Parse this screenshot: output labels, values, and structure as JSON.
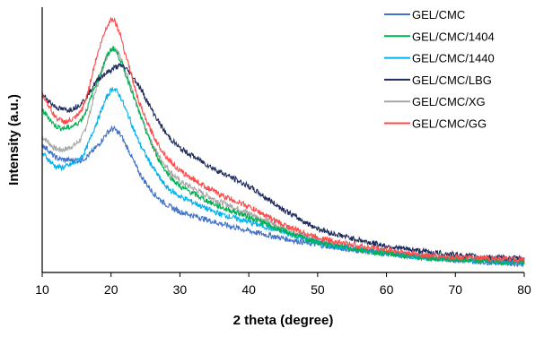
{
  "chart_data": {
    "type": "line",
    "title": "",
    "xlabel": "2 theta (degree)",
    "ylabel": "Intensity (a.u.)",
    "xlim": [
      10,
      80
    ],
    "x_ticks": [
      "10",
      "20",
      "30",
      "40",
      "50",
      "60",
      "70",
      "80"
    ],
    "y_ticks_shown": false,
    "grid": false,
    "legend_position": "top-right",
    "x": [
      10,
      12,
      14,
      16,
      18,
      20,
      21,
      22,
      24,
      26,
      28,
      30,
      35,
      40,
      45,
      50,
      55,
      60,
      65,
      70,
      75,
      80
    ],
    "series": [
      {
        "name": "GEL/CMC",
        "color": "#4472C4",
        "values": [
          0.505,
          0.455,
          0.445,
          0.45,
          0.5,
          0.565,
          0.555,
          0.51,
          0.4,
          0.32,
          0.27,
          0.24,
          0.2,
          0.165,
          0.135,
          0.11,
          0.09,
          0.075,
          0.06,
          0.05,
          0.04,
          0.035
        ]
      },
      {
        "name": "GEL/CMC/1404",
        "color": "#00B050",
        "values": [
          0.64,
          0.58,
          0.575,
          0.62,
          0.76,
          0.88,
          0.86,
          0.79,
          0.64,
          0.5,
          0.4,
          0.34,
          0.27,
          0.22,
          0.165,
          0.12,
          0.095,
          0.075,
          0.06,
          0.05,
          0.045,
          0.04
        ]
      },
      {
        "name": "GEL/CMC/1440",
        "color": "#00B0F0",
        "values": [
          0.47,
          0.42,
          0.425,
          0.47,
          0.6,
          0.72,
          0.71,
          0.65,
          0.52,
          0.42,
          0.34,
          0.3,
          0.24,
          0.2,
          0.16,
          0.12,
          0.095,
          0.075,
          0.06,
          0.05,
          0.045,
          0.04
        ]
      },
      {
        "name": "GEL/CMC/LBG",
        "color": "#1F2D5C",
        "values": [
          0.7,
          0.655,
          0.645,
          0.68,
          0.76,
          0.8,
          0.815,
          0.81,
          0.74,
          0.64,
          0.55,
          0.49,
          0.41,
          0.34,
          0.25,
          0.175,
          0.135,
          0.105,
          0.085,
          0.07,
          0.06,
          0.055
        ]
      },
      {
        "name": "GEL/CMC/XG",
        "color": "#A6A6A6",
        "values": [
          0.535,
          0.49,
          0.495,
          0.55,
          0.74,
          0.885,
          0.87,
          0.8,
          0.64,
          0.51,
          0.42,
          0.36,
          0.29,
          0.235,
          0.175,
          0.13,
          0.1,
          0.08,
          0.065,
          0.055,
          0.05,
          0.045
        ]
      },
      {
        "name": "GEL/CMC/GG",
        "color": "#FF4B4B",
        "values": [
          0.7,
          0.615,
          0.6,
          0.66,
          0.86,
          1.0,
          0.965,
          0.87,
          0.68,
          0.55,
          0.46,
          0.4,
          0.32,
          0.26,
          0.19,
          0.14,
          0.11,
          0.09,
          0.07,
          0.06,
          0.055,
          0.05
        ]
      }
    ]
  }
}
